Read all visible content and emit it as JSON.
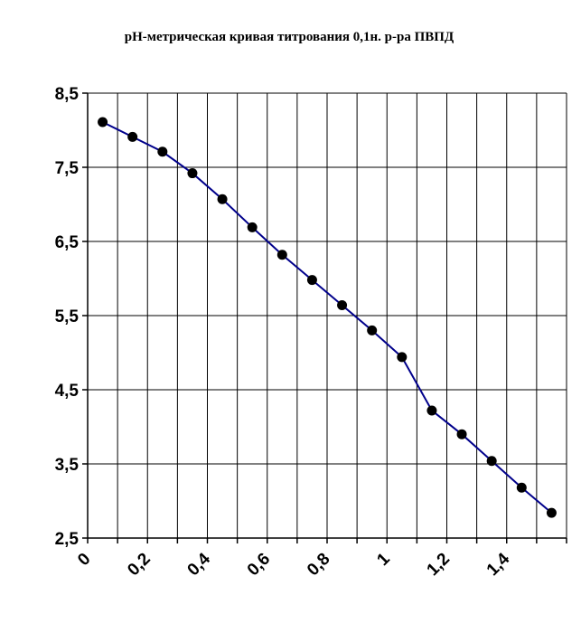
{
  "chart_data": {
    "type": "line",
    "title": "pH-метрическая кривая титрования 0,1н. р-ра  ПВПД",
    "xlabel": "",
    "ylabel": "",
    "xlim": [
      0,
      1.6
    ],
    "ylim": [
      2.5,
      8.5
    ],
    "x_grid_step": 0.1,
    "grid": true,
    "y_ticks": [
      "8,5",
      "7,5",
      "6,5",
      "5,5",
      "4,5",
      "3,5",
      "2,5"
    ],
    "y_tick_values": [
      8.5,
      7.5,
      6.5,
      5.5,
      4.5,
      3.5,
      2.5
    ],
    "x_ticks": [
      "0",
      "0,2",
      "0,4",
      "0,6",
      "0,8",
      "1",
      "1,2",
      "1,4"
    ],
    "x_tick_values": [
      0,
      0.2,
      0.4,
      0.6,
      0.8,
      1.0,
      1.2,
      1.4
    ],
    "line_color": "#00008B",
    "marker_color": "#000000",
    "series": [
      {
        "x": [
          0.05,
          0.15,
          0.25,
          0.35,
          0.45,
          0.55,
          0.65,
          0.75,
          0.85,
          0.95,
          1.05,
          1.15,
          1.25,
          1.35,
          1.45,
          1.55
        ],
        "y": [
          8.11,
          7.91,
          7.71,
          7.42,
          7.07,
          6.69,
          6.32,
          5.98,
          5.64,
          5.3,
          4.94,
          4.22,
          3.9,
          3.54,
          3.18,
          2.84
        ]
      }
    ]
  }
}
